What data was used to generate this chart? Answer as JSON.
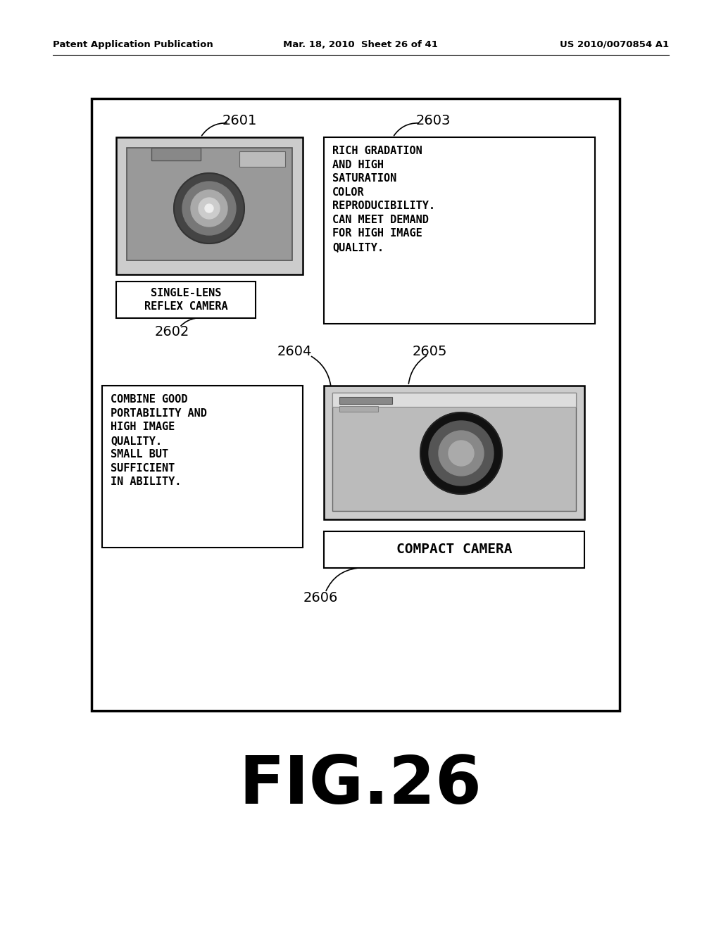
{
  "header_left": "Patent Application Publication",
  "header_mid": "Mar. 18, 2010  Sheet 26 of 41",
  "header_right": "US 2010/0070854 A1",
  "fig_label": "FIG.26",
  "bg_color": "#ffffff",
  "label_2601": "2601",
  "label_2602": "2602",
  "label_2603": "2603",
  "label_2604": "2604",
  "label_2605": "2605",
  "label_2606": "2606",
  "slr_label": "SINGLE-LENS\nREFLEX CAMERA",
  "slr_desc": "RICH GRADATION\nAND HIGH\nSATURATION\nCOLOR\nREPRODUCIBILITY.\nCAN MEET DEMAND\nFOR HIGH IMAGE\nQUALITY.",
  "compact_label": "COMPACT CAMERA",
  "compact_desc": "COMBINE GOOD\nPORTABILITY AND\nHIGH IMAGE\nQUALITY.\nSMALL BUT\nSUFFICIENT\nIN ABILITY."
}
